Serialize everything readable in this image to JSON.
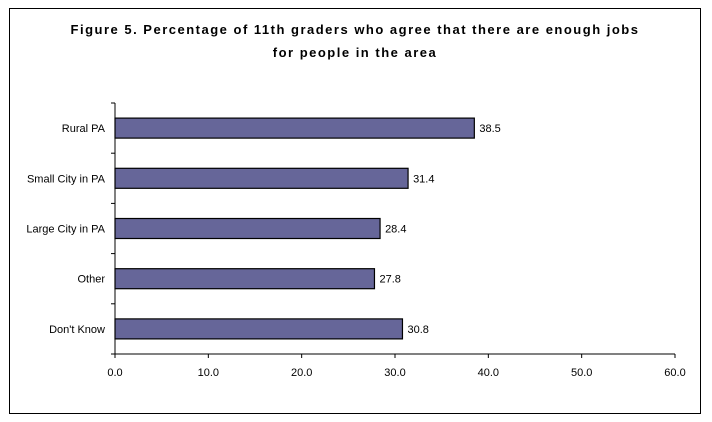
{
  "chart_data": {
    "type": "bar",
    "orientation": "horizontal",
    "title": "Figure 5.  Percentage of 11th graders who agree that there are enough jobs for people in the area",
    "categories": [
      "Rural PA",
      "Small City in PA",
      "Large City in PA",
      "Other",
      "Don't Know"
    ],
    "values": [
      38.5,
      31.4,
      28.4,
      27.8,
      30.8
    ],
    "value_labels": [
      "38.5",
      "31.4",
      "28.4",
      "27.8",
      "30.8"
    ],
    "xlim": [
      0,
      60
    ],
    "x_ticks": [
      "0.0",
      "10.0",
      "20.0",
      "30.0",
      "40.0",
      "50.0",
      "60.0"
    ],
    "x_tick_values": [
      0,
      10,
      20,
      30,
      40,
      50,
      60
    ],
    "xlabel": "",
    "ylabel": "",
    "grid": false,
    "legend": "none",
    "bar_color": "#666699"
  }
}
